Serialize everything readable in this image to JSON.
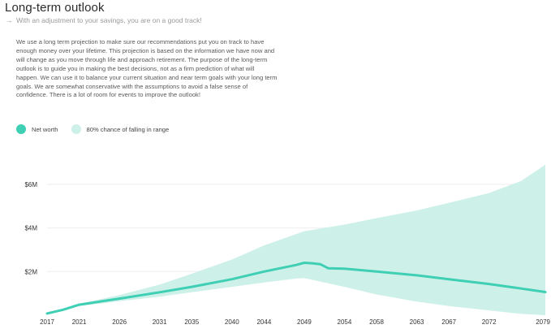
{
  "header": {
    "title": "Long-term outlook",
    "subtitle": "With an adjustment to your savings, you are on a good track!"
  },
  "description": "We use a long term projection to make sure our recommendations put you on track to have enough money over your lifetime. This projection is based on the information we have now and will change as you move through life and approach retirement. The purpose of the long-term outlook is to guide you in making the best decisions, not as a firm prediction of what will happen. We can use it to balance your current situation and near term goals with your long term goals. We are somewhat conservative with the assumptions to avoid a false sense of confidence. There is a lot of room for events to improve the outlook!",
  "icons": {
    "subtitle_arrow": "arrow-right-icon"
  },
  "colors": {
    "line": "#3fcfb5",
    "band": "#cdf0e8",
    "grid": "#eeeeee"
  },
  "chart_data": {
    "type": "area",
    "title": "",
    "xlabel": "",
    "ylabel": "",
    "legend": [
      {
        "name": "Net worth",
        "color": "#3fcfb5"
      },
      {
        "name": "80% chance of falling in range",
        "color": "#cdf0e8"
      }
    ],
    "legend_position": "top-left",
    "grid": true,
    "xlim": [
      2017,
      2079
    ],
    "ylim": [
      0,
      7000000
    ],
    "x_ticks": [
      {
        "value": 2017,
        "label": "2017"
      },
      {
        "value": 2021,
        "label": "2021"
      },
      {
        "value": 2026,
        "label": "2026"
      },
      {
        "value": 2031,
        "label": "2031"
      },
      {
        "value": 2035,
        "label": "2035"
      },
      {
        "value": 2040,
        "label": "2040"
      },
      {
        "value": 2044,
        "label": "2044"
      },
      {
        "value": 2049,
        "label": "2049"
      },
      {
        "value": 2054,
        "label": "2054"
      },
      {
        "value": 2058,
        "label": "2058"
      },
      {
        "value": 2063,
        "label": "2063"
      },
      {
        "value": 2067,
        "label": "2067"
      },
      {
        "value": 2072,
        "label": "2072"
      },
      {
        "value": 2079,
        "label": "2079"
      }
    ],
    "y_ticks": [
      {
        "value": 2000000,
        "label": "$2M"
      },
      {
        "value": 4000000,
        "label": "$4M"
      },
      {
        "value": 6000000,
        "label": "$6M"
      }
    ],
    "series": [
      {
        "name": "Net worth",
        "type": "line",
        "x": [
          2017,
          2019,
          2021,
          2026,
          2031,
          2035,
          2040,
          2044,
          2048,
          2049,
          2050,
          2051,
          2052,
          2054,
          2058,
          2063,
          2067,
          2072,
          2076,
          2079
        ],
        "values": [
          80000,
          250000,
          480000,
          760000,
          1050000,
          1300000,
          1650000,
          2000000,
          2300000,
          2400000,
          2380000,
          2340000,
          2150000,
          2130000,
          2000000,
          1830000,
          1650000,
          1430000,
          1220000,
          1060000
        ]
      },
      {
        "name": "80% chance of falling in range",
        "type": "band",
        "x": [
          2017,
          2021,
          2026,
          2031,
          2035,
          2040,
          2044,
          2048,
          2049,
          2054,
          2058,
          2063,
          2067,
          2072,
          2076,
          2079
        ],
        "upper": [
          100000,
          520000,
          920000,
          1400000,
          1900000,
          2550000,
          3200000,
          3720000,
          3850000,
          4150000,
          4450000,
          4800000,
          5150000,
          5600000,
          6150000,
          6900000
        ],
        "lower": [
          60000,
          420000,
          640000,
          850000,
          1050000,
          1300000,
          1500000,
          1680000,
          1700000,
          1300000,
          950000,
          620000,
          420000,
          220000,
          60000,
          0
        ]
      }
    ]
  }
}
